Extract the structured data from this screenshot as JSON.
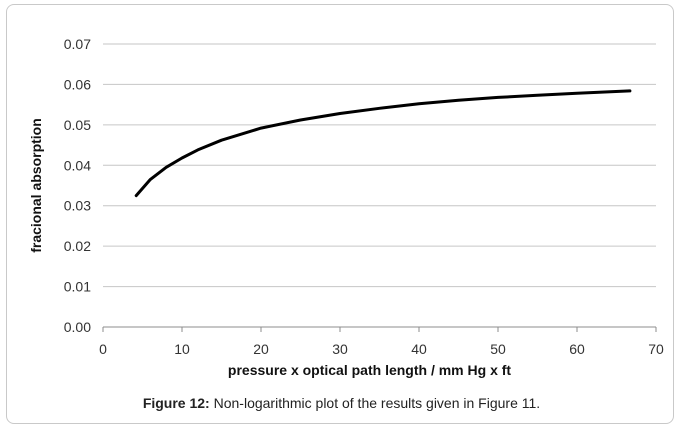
{
  "caption": {
    "label": "Figure 12:",
    "text": " Non-logarithmic plot of the results given in Figure 11."
  },
  "chart_data": {
    "type": "line",
    "title": "",
    "xlabel": "pressure x optical path length / mm Hg x ft",
    "ylabel": "fracional absorption",
    "xlim": [
      0,
      70
    ],
    "ylim": [
      0,
      0.07
    ],
    "xticks": [
      "0",
      "10",
      "20",
      "30",
      "40",
      "50",
      "60",
      "70"
    ],
    "yticks": [
      "0.00",
      "0.01",
      "0.02",
      "0.03",
      "0.04",
      "0.05",
      "0.06",
      "0.07"
    ],
    "grid": "horizontal",
    "legend": "none",
    "series": [
      {
        "color": "#000000",
        "x": [
          4.2,
          6,
          8,
          10,
          12,
          15,
          20,
          25,
          30,
          35,
          40,
          45,
          50,
          55,
          60,
          66.7
        ],
        "y": [
          0.0325,
          0.0365,
          0.0395,
          0.0418,
          0.0438,
          0.0462,
          0.0492,
          0.0512,
          0.0528,
          0.0541,
          0.0552,
          0.0561,
          0.0568,
          0.0573,
          0.0578,
          0.0584
        ]
      }
    ]
  }
}
